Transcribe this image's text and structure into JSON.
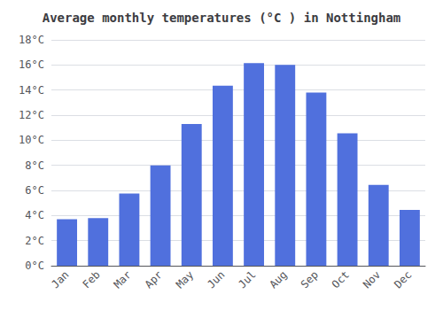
{
  "chart_data": {
    "type": "bar",
    "title": "Average monthly temperatures (°C ) in Nottingham",
    "categories": [
      "Jan",
      "Feb",
      "Mar",
      "Apr",
      "May",
      "Jun",
      "Jul",
      "Aug",
      "Sep",
      "Oct",
      "Nov",
      "Dec"
    ],
    "values": [
      3.7,
      3.8,
      5.75,
      8.0,
      11.3,
      14.35,
      16.15,
      16.0,
      13.8,
      10.55,
      6.45,
      4.45
    ],
    "ylim": [
      0,
      18
    ],
    "yticks": [
      {
        "value": 0,
        "label": "0°C"
      },
      {
        "value": 2,
        "label": "2°C"
      },
      {
        "value": 4,
        "label": "4°C"
      },
      {
        "value": 6,
        "label": "6°C"
      },
      {
        "value": 8,
        "label": "8°C"
      },
      {
        "value": 10,
        "label": "10°C"
      },
      {
        "value": 12,
        "label": "12°C"
      },
      {
        "value": 14,
        "label": "14°C"
      },
      {
        "value": 16,
        "label": "16°C"
      },
      {
        "value": 18,
        "label": "18°C"
      }
    ],
    "grid": true
  }
}
